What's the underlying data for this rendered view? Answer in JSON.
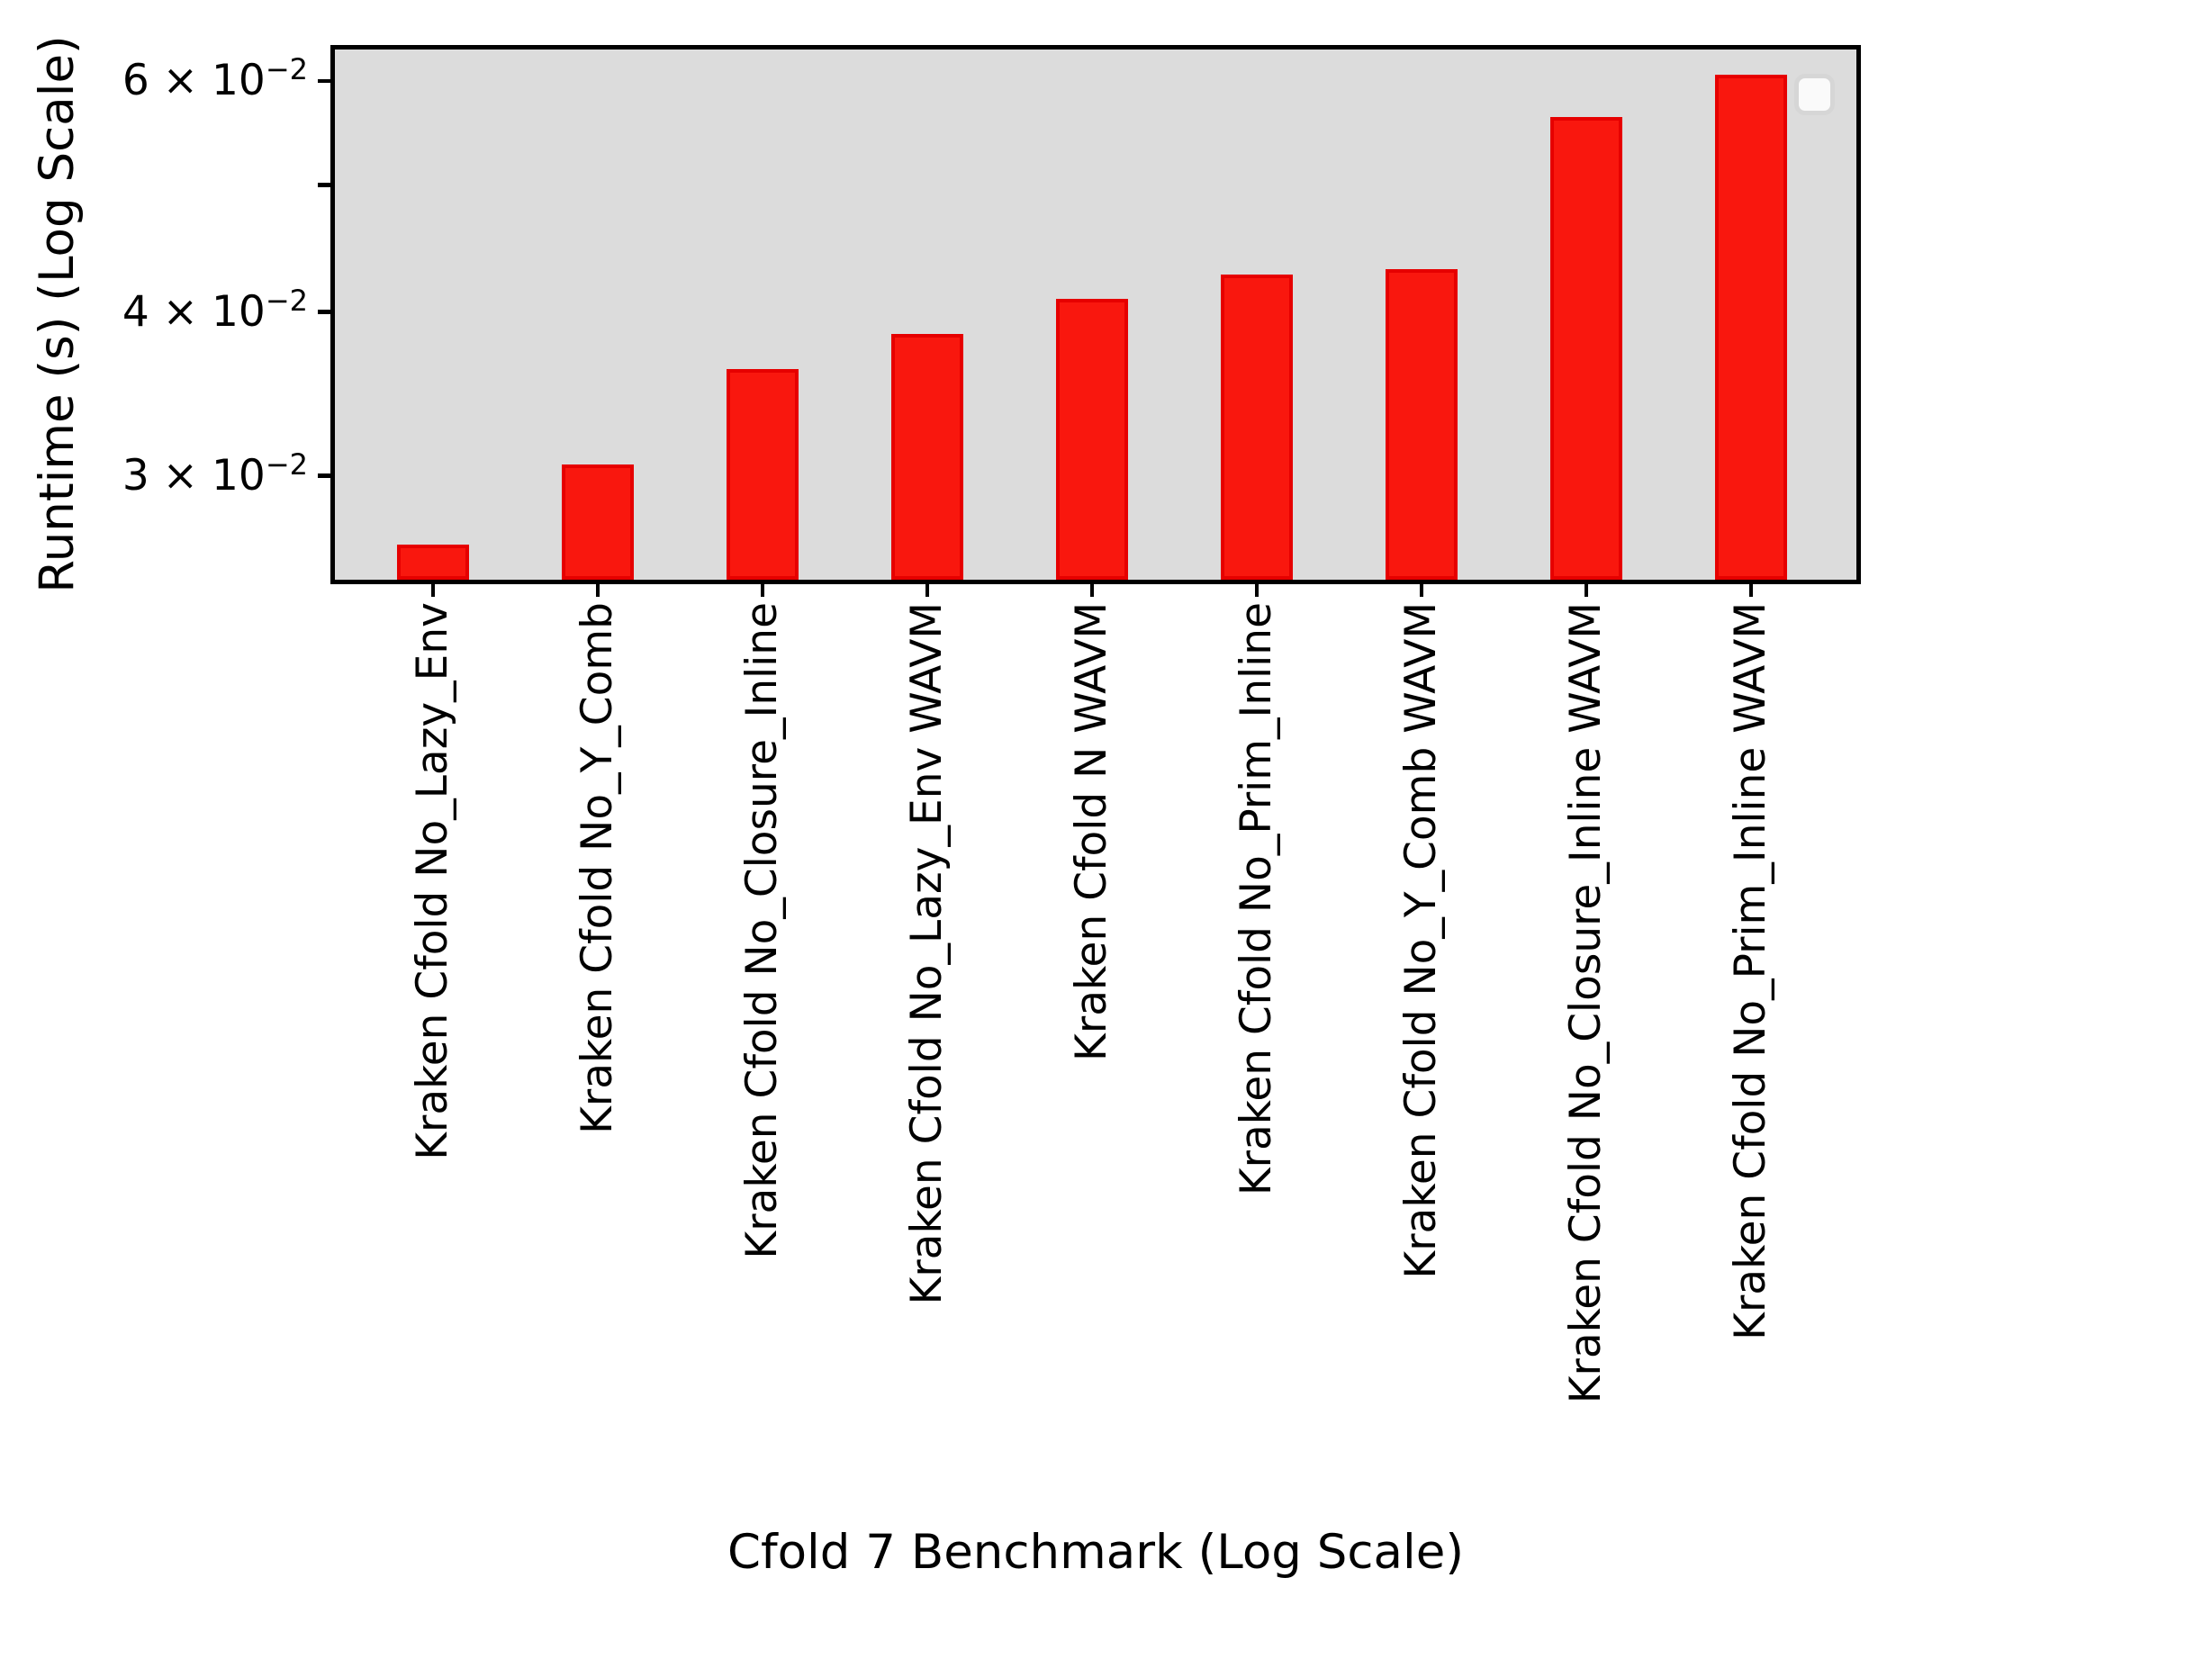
{
  "chart_data": {
    "type": "bar",
    "title": "",
    "xlabel": "Cfold 7 Benchmark (Log Scale)",
    "ylabel": "Runtime (s) (Log Scale)",
    "yscale": "log",
    "ylim": [
      0.025,
      0.0634
    ],
    "grid": false,
    "plot_background": "#dcdcdc",
    "figure_background": "#ffffff",
    "bar_color": "#f9170e",
    "bar_edge_color": "#e60000",
    "axis_color": "#000000",
    "legend": {
      "visible": true,
      "entries": [],
      "position": "upper-right"
    },
    "categories": [
      "Kraken Cfold No_Lazy_Env",
      "Kraken Cfold No_Y_Comb",
      "Kraken Cfold No_Closure_Inline",
      "Kraken Cfold No_Lazy_Env WAVM",
      "Kraken Cfold N WAVM",
      "Kraken Cfold No_Prim_Inline",
      "Kraken Cfold No_Y_Comb WAVM",
      "Kraken Cfold No_Closure_Inline WAVM",
      "Kraken Cfold No_Prim_Inline WAVM"
    ],
    "values": [
      0.0266,
      0.0306,
      0.0362,
      0.0385,
      0.0409,
      0.0427,
      0.0431,
      0.0563,
      0.0607
    ],
    "yticks": [
      {
        "value": 0.06,
        "base": "6 × 10",
        "exp": "−2"
      },
      {
        "value": 0.05,
        "base": "",
        "exp": ""
      },
      {
        "value": 0.04,
        "base": "4 × 10",
        "exp": "−2"
      },
      {
        "value": 0.03,
        "base": "3 × 10",
        "exp": "−2"
      }
    ]
  }
}
